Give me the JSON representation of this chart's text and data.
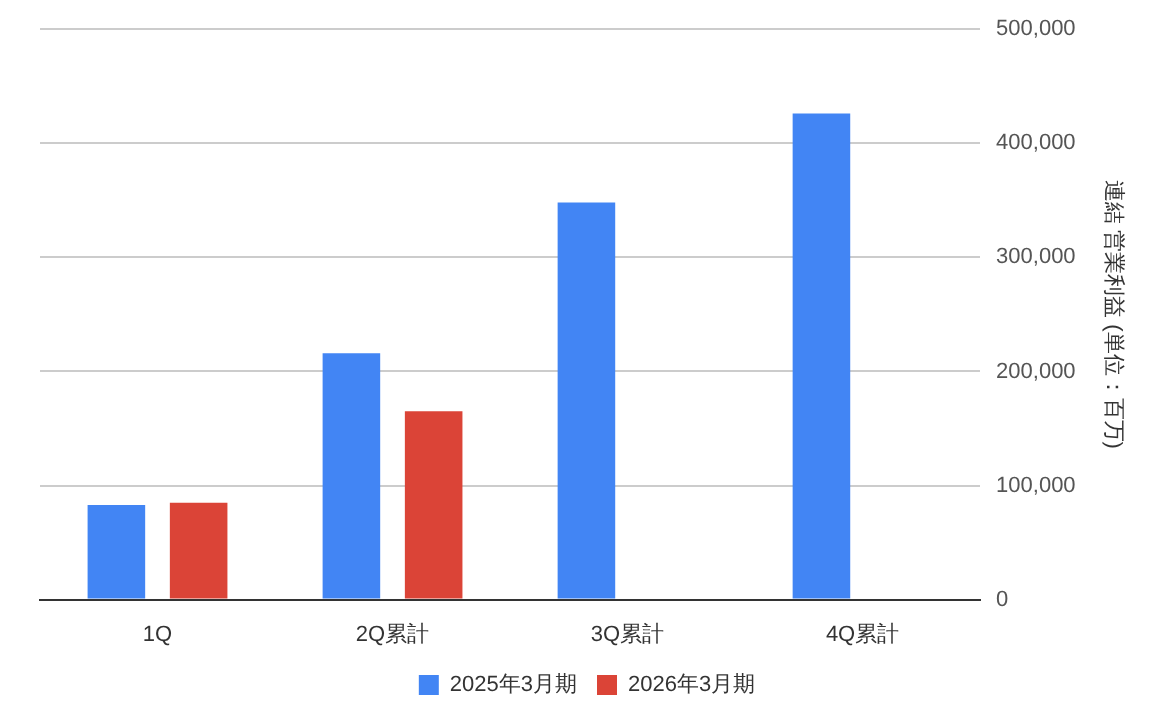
{
  "chart_data": {
    "type": "bar",
    "categories": [
      "1Q",
      "2Q累計",
      "3Q累計",
      "4Q累計"
    ],
    "series": [
      {
        "name": "2025年3月期",
        "color": "#4285f4",
        "values": [
          83000,
          216000,
          348000,
          426000
        ]
      },
      {
        "name": "2026年3月期",
        "color": "#db4437",
        "values": [
          85000,
          165000,
          null,
          null
        ]
      }
    ],
    "ylabel": "連結 営業利益 (単位：百万)",
    "ylim": [
      0,
      500000
    ],
    "yticks": [
      {
        "value": 0,
        "label": "0"
      },
      {
        "value": 100000,
        "label": "100,000"
      },
      {
        "value": 200000,
        "label": "200,000"
      },
      {
        "value": 300000,
        "label": "300,000"
      },
      {
        "value": 400000,
        "label": "400,000"
      },
      {
        "value": 500000,
        "label": "500,000"
      }
    ],
    "grid": "y",
    "legend": "bottom"
  }
}
